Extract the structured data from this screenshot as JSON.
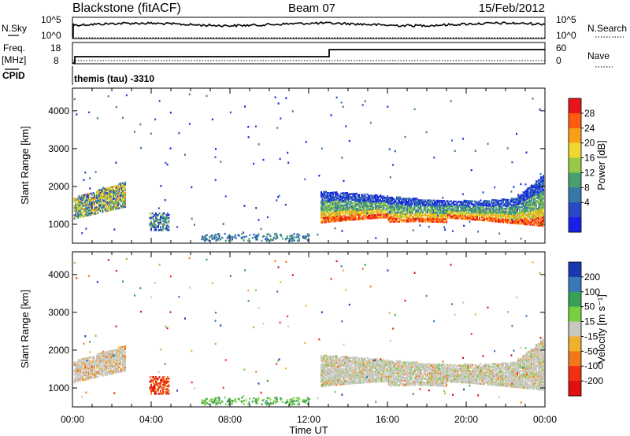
{
  "header": {
    "station": "Blackstone (fitACF)",
    "beam": "Beam 07",
    "date": "15/Feb/2012"
  },
  "strip_panels": {
    "nsky_label": "N.Sky",
    "nsearch_label": "N.Search",
    "nsky_ticks": [
      "10^5",
      "10^0"
    ],
    "nsearch_ticks": [
      "10^5",
      "10^0"
    ],
    "freq_label": "Freq.",
    "freq_unit": "[MHz]",
    "freq_ticks": [
      "18",
      "8"
    ],
    "nave_label": "Nave",
    "nave_ticks": [
      "60",
      "0"
    ],
    "cpid_label": "CPID",
    "cpid_text": "themis (tau) -3310"
  },
  "chart_data": [
    {
      "type": "heatmap",
      "name": "power-panel",
      "ylabel": "Slant Range [km]",
      "yticks": [
        1000,
        2000,
        3000,
        4000
      ],
      "ylim": [
        500,
        4600
      ],
      "xlim": [
        0,
        24
      ],
      "colorbar_label": "Power [dB]",
      "colorbar_ticks": [
        "28",
        "24",
        "20",
        "16",
        "12",
        "8",
        "4"
      ],
      "colorbar_colors": [
        "#e8141c",
        "#ff5a10",
        "#f8a018",
        "#f0d830",
        "#98c848",
        "#48a070",
        "#3878a8",
        "#2848c8",
        "#1820e8"
      ],
      "colorbar_type": "power"
    },
    {
      "type": "heatmap",
      "name": "velocity-panel",
      "ylabel": "Slant Range [km]",
      "yticks": [
        1000,
        2000,
        3000,
        4000
      ],
      "ylim": [
        500,
        4600
      ],
      "xlim": [
        0,
        24
      ],
      "colorbar_label": "Velocity [m s⁻¹]",
      "colorbar_ticks": [
        "200",
        "100",
        "50",
        "15",
        "-15",
        "-50",
        "-100",
        "-200"
      ],
      "colorbar_colors": [
        "#1838b0",
        "#3878b8",
        "#38a058",
        "#78d040",
        "#c8c8c0",
        "#f0b030",
        "#f07818",
        "#f03010",
        "#e01010"
      ],
      "colorbar_type": "velocity"
    }
  ],
  "xaxis": {
    "ticks": [
      "00:00",
      "04:00",
      "08:00",
      "12:00",
      "16:00",
      "20:00",
      "00:00"
    ],
    "label": "Time UT"
  }
}
